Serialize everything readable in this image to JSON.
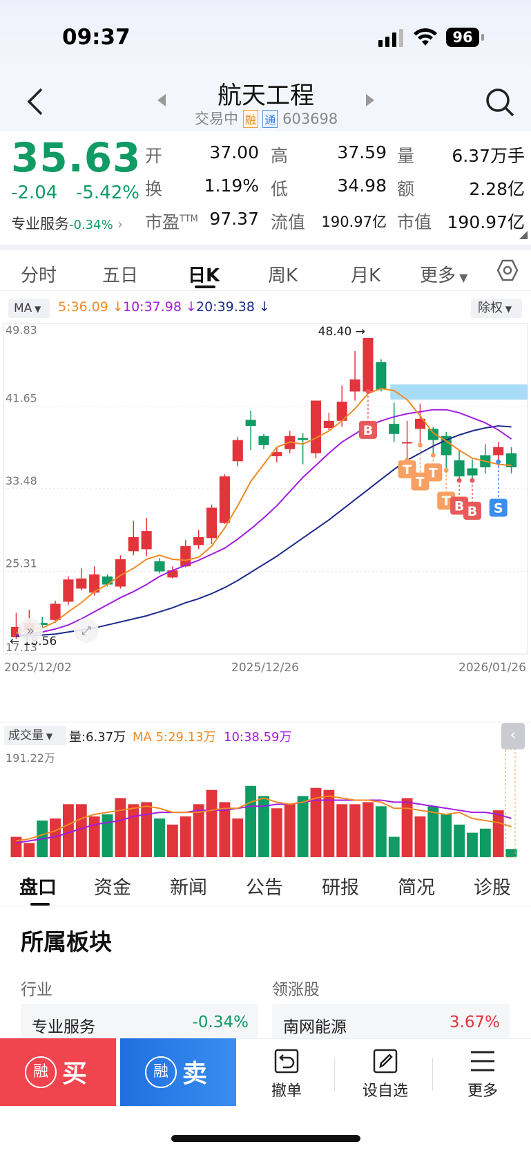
{
  "status": {
    "time": "09:37",
    "battery": "96"
  },
  "header": {
    "title": "航天工程",
    "trade_status": "交易中",
    "tag_rong": "融",
    "tag_tong": "通",
    "code": "603698"
  },
  "quote": {
    "price": "35.63",
    "change": "-2.04",
    "change_pct": "-5.42%",
    "sector_label": "专业服务",
    "sector_pct": "-0.34%",
    "open_l": "开",
    "open_v": "37.00",
    "high_l": "高",
    "high_v": "37.59",
    "vol_l": "量",
    "vol_v": "6.37万手",
    "turn_l": "换",
    "turn_v": "1.19%",
    "low_l": "低",
    "low_v": "34.98",
    "amt_l": "额",
    "amt_v": "2.28亿",
    "pe_l": "市盈",
    "pe_sup": "TTM",
    "pe_v": "97.37",
    "float_l": "流值",
    "float_v": "190.97亿",
    "mcap_l": "市值",
    "mcap_v": "190.97亿"
  },
  "tabs": [
    "分时",
    "五日",
    "日K",
    "周K",
    "月K",
    "更多"
  ],
  "ma": {
    "label": "MA",
    "ma5": "5:36.09",
    "ma10": "10:37.98",
    "ma20": "20:39.38",
    "adjust": "除权"
  },
  "colors": {
    "up": "#e1343b",
    "down": "#0f9b63",
    "ma5": "#f08a24",
    "ma10": "#a21de0",
    "ma20": "#1b2a8c",
    "accent": "#2f7fe4"
  },
  "chart_data": {
    "type": "candlestick",
    "y_ticks": [
      "49.83",
      "41.65",
      "33.48",
      "25.31",
      "17.13"
    ],
    "x_ticks": [
      "2025/12/02",
      "2025/12/26",
      "2026/01/26"
    ],
    "max_label": "48.40",
    "min_label": "18.56",
    "ylim": [
      17.13,
      49.83
    ],
    "candles": [
      {
        "o": 18.8,
        "c": 19.8,
        "h": 21.2,
        "l": 18.6
      },
      {
        "o": 19.5,
        "c": 20.2,
        "h": 21.5,
        "l": 19.0
      },
      {
        "o": 20.2,
        "c": 20.0,
        "h": 20.8,
        "l": 19.6
      },
      {
        "o": 20.5,
        "c": 22.1,
        "h": 22.4,
        "l": 20.2
      },
      {
        "o": 22.3,
        "c": 24.5,
        "h": 24.8,
        "l": 22.0
      },
      {
        "o": 23.6,
        "c": 24.6,
        "h": 25.6,
        "l": 23.4
      },
      {
        "o": 23.2,
        "c": 25.0,
        "h": 25.8,
        "l": 22.9
      },
      {
        "o": 24.8,
        "c": 24.0,
        "h": 25.0,
        "l": 23.8
      },
      {
        "o": 23.8,
        "c": 26.5,
        "h": 26.9,
        "l": 23.6
      },
      {
        "o": 27.3,
        "c": 28.7,
        "h": 30.3,
        "l": 26.9
      },
      {
        "o": 27.5,
        "c": 29.3,
        "h": 30.6,
        "l": 26.8
      },
      {
        "o": 26.3,
        "c": 25.3,
        "h": 26.6,
        "l": 25.1
      },
      {
        "o": 24.7,
        "c": 25.4,
        "h": 25.8,
        "l": 24.6
      },
      {
        "o": 25.8,
        "c": 27.8,
        "h": 28.4,
        "l": 25.7
      },
      {
        "o": 27.9,
        "c": 28.7,
        "h": 29.4,
        "l": 27.5
      },
      {
        "o": 28.6,
        "c": 31.6,
        "h": 31.9,
        "l": 28.0
      },
      {
        "o": 30.1,
        "c": 34.7,
        "h": 34.9,
        "l": 30.0
      },
      {
        "o": 36.2,
        "c": 38.3,
        "h": 38.6,
        "l": 35.7
      },
      {
        "o": 40.3,
        "c": 39.7,
        "h": 41.2,
        "l": 37.3
      },
      {
        "o": 38.7,
        "c": 37.8,
        "h": 38.9,
        "l": 37.4
      },
      {
        "o": 36.7,
        "c": 37.1,
        "h": 37.6,
        "l": 36.1
      },
      {
        "o": 37.4,
        "c": 38.7,
        "h": 39.2,
        "l": 37.0
      },
      {
        "o": 38.5,
        "c": 38.3,
        "h": 39.0,
        "l": 35.9
      },
      {
        "o": 37.0,
        "c": 42.2,
        "h": 42.2,
        "l": 36.5
      },
      {
        "o": 39.5,
        "c": 40.2,
        "h": 41.0,
        "l": 39.3
      },
      {
        "o": 40.2,
        "c": 42.1,
        "h": 43.7,
        "l": 39.6
      },
      {
        "o": 43.1,
        "c": 44.3,
        "h": 47.1,
        "l": 42.2
      },
      {
        "o": 43.1,
        "c": 48.4,
        "h": 48.4,
        "l": 43.1
      },
      {
        "o": 46.0,
        "c": 43.3,
        "h": 46.3,
        "l": 43.1
      },
      {
        "o": 39.9,
        "c": 38.9,
        "h": 42.0,
        "l": 38.1
      },
      {
        "o": 38.1,
        "c": 38.1,
        "h": 40.2,
        "l": 36.3
      },
      {
        "o": 39.4,
        "c": 40.4,
        "h": 41.9,
        "l": 37.8
      },
      {
        "o": 39.4,
        "c": 38.3,
        "h": 39.6,
        "l": 36.8
      },
      {
        "o": 38.7,
        "c": 36.8,
        "h": 39.1,
        "l": 35.3
      },
      {
        "o": 36.3,
        "c": 34.7,
        "h": 37.3,
        "l": 34.3
      },
      {
        "o": 35.5,
        "c": 34.8,
        "h": 36.4,
        "l": 34.3
      },
      {
        "o": 36.8,
        "c": 35.6,
        "h": 37.9,
        "l": 35.0
      },
      {
        "o": 36.8,
        "c": 37.6,
        "h": 38.1,
        "l": 35.6
      },
      {
        "o": 37.0,
        "c": 35.6,
        "h": 37.6,
        "l": 35.0
      }
    ],
    "ma5": [
      19.2,
      19.5,
      19.7,
      20.3,
      21.3,
      22.2,
      23.3,
      24.0,
      24.9,
      25.6,
      26.5,
      26.9,
      26.5,
      26.4,
      26.7,
      27.8,
      29.6,
      31.8,
      34.2,
      35.9,
      37.6,
      38.1,
      37.9,
      38.5,
      39.2,
      40.2,
      41.4,
      42.9,
      43.4,
      43.2,
      42.3,
      40.7,
      39.0,
      38.2,
      37.3,
      36.5,
      36.2,
      35.9,
      35.8
    ],
    "ma10": [
      19.0,
      19.1,
      19.3,
      19.6,
      20.0,
      20.6,
      21.3,
      22.0,
      22.7,
      23.3,
      24.0,
      24.8,
      25.4,
      25.9,
      26.4,
      27.0,
      27.6,
      28.5,
      29.5,
      30.6,
      31.8,
      33.2,
      34.6,
      35.8,
      37.0,
      38.1,
      38.9,
      39.7,
      40.2,
      40.6,
      40.9,
      41.1,
      41.3,
      41.3,
      41.0,
      40.5,
      40.0,
      39.3,
      38.4
    ],
    "ma20": [
      18.9,
      18.95,
      19.0,
      19.1,
      19.3,
      19.5,
      19.7,
      20.0,
      20.3,
      20.6,
      20.9,
      21.3,
      21.7,
      22.2,
      22.6,
      23.1,
      23.7,
      24.4,
      25.2,
      26.0,
      26.8,
      27.7,
      28.6,
      29.5,
      30.4,
      31.4,
      32.4,
      33.4,
      34.4,
      35.4,
      36.3,
      37.0,
      37.7,
      38.3,
      38.8,
      39.2,
      39.5,
      39.7,
      39.6
    ],
    "rect_zone": {
      "y_top": 43.8,
      "y_bottom": 42.3,
      "from_index": 29
    },
    "markers": [
      {
        "i": 27,
        "label": "B",
        "type": "buy-red",
        "y": 39.3
      },
      {
        "i": 30,
        "label": "T",
        "type": "t",
        "y": 35.4
      },
      {
        "i": 31,
        "label": "T",
        "type": "t",
        "y": 34.2
      },
      {
        "i": 32,
        "label": "T",
        "type": "t",
        "y": 35.1
      },
      {
        "i": 33,
        "label": "T",
        "type": "t",
        "y": 32.3
      },
      {
        "i": 34,
        "label": "B",
        "type": "buy-red",
        "y": 31.8
      },
      {
        "i": 35,
        "label": "B",
        "type": "buy-red",
        "y": 31.3
      },
      {
        "i": 37,
        "label": "S",
        "type": "sell-blue",
        "y": 31.6
      }
    ]
  },
  "volume": {
    "label": "成交量",
    "vol_text": "量:6.37万",
    "ma_text": "MA 5:29.13万",
    "ma10_text": "10:38.59万",
    "max_label": "191.22万",
    "values": [
      0.1,
      0.07,
      0.18,
      0.19,
      0.26,
      0.26,
      0.2,
      0.21,
      0.29,
      0.26,
      0.27,
      0.19,
      0.16,
      0.2,
      0.26,
      0.33,
      0.27,
      0.19,
      0.35,
      0.3,
      0.24,
      0.26,
      0.3,
      0.34,
      0.33,
      0.26,
      0.26,
      0.27,
      0.25,
      0.1,
      0.29,
      0.2,
      0.25,
      0.21,
      0.16,
      0.12,
      0.14,
      0.23,
      0.04
    ],
    "ma5": [
      0.08,
      0.09,
      0.11,
      0.13,
      0.16,
      0.19,
      0.21,
      0.22,
      0.23,
      0.24,
      0.25,
      0.24,
      0.22,
      0.22,
      0.22,
      0.23,
      0.24,
      0.24,
      0.27,
      0.29,
      0.27,
      0.26,
      0.27,
      0.29,
      0.3,
      0.29,
      0.28,
      0.28,
      0.27,
      0.24,
      0.24,
      0.23,
      0.22,
      0.21,
      0.22,
      0.19,
      0.18,
      0.17,
      0.15
    ],
    "ma10": [
      0.07,
      0.08,
      0.09,
      0.1,
      0.12,
      0.14,
      0.16,
      0.17,
      0.18,
      0.2,
      0.21,
      0.22,
      0.22,
      0.22,
      0.23,
      0.23,
      0.23,
      0.24,
      0.25,
      0.25,
      0.26,
      0.26,
      0.27,
      0.28,
      0.28,
      0.28,
      0.28,
      0.28,
      0.28,
      0.27,
      0.27,
      0.26,
      0.25,
      0.24,
      0.23,
      0.22,
      0.22,
      0.21,
      0.19
    ]
  },
  "bottom_tabs": [
    "盘口",
    "资金",
    "新闻",
    "公告",
    "研报",
    "简况",
    "诊股"
  ],
  "section": {
    "title": "所属板块",
    "col1": "行业",
    "col2": "领涨股",
    "industry": "专业服务",
    "industry_pct": "-0.34%",
    "leader": "南网能源",
    "leader_pct": "3.67%"
  },
  "actions": {
    "buy_badge": "融",
    "buy": "买",
    "sell_badge": "融",
    "sell": "卖",
    "cancel": "撤单",
    "watch": "设自选",
    "more": "更多"
  }
}
